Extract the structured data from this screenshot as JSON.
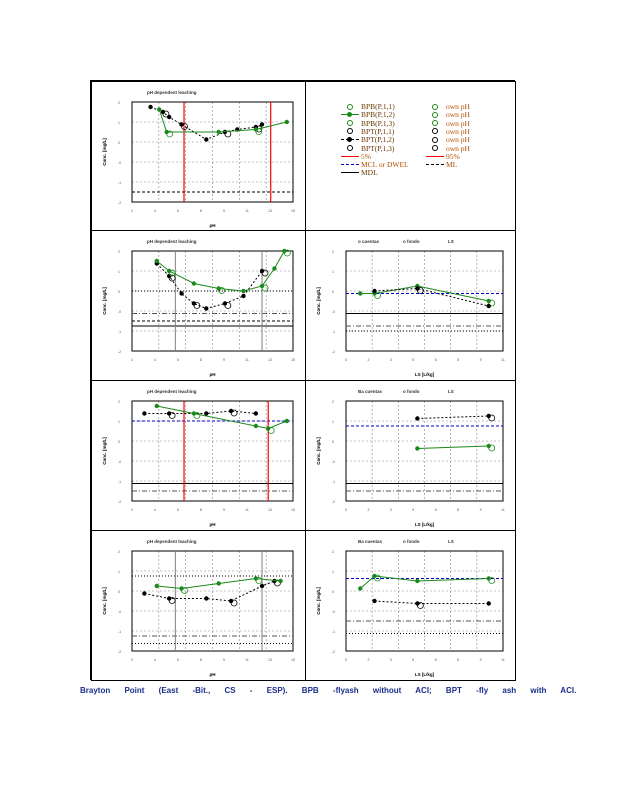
{
  "caption": "Brayton Point (East -Bit., CS - ESP). BPB -flyash without ACI; BPT -fly ash with ACI.",
  "colors": {
    "bpb": "#1a8a1a",
    "bpt": "#000000",
    "red": "#ff0000",
    "blue": "#0000cc",
    "grey": "#808080"
  },
  "legend": {
    "left": [
      {
        "label": "BPB(P,1,1)",
        "sym": "open-green"
      },
      {
        "label": "BPB(P,1,2)",
        "sym": "line-green"
      },
      {
        "label": "BPB(P,1,3)",
        "sym": "open-green"
      },
      {
        "label": "BPT(P,1,1)",
        "sym": "open-black"
      },
      {
        "label": "BPT(P,1,2)",
        "sym": "line-black"
      },
      {
        "label": "BPT(P,1,3)",
        "sym": "open-black"
      },
      {
        "label": "5%",
        "sym": "red"
      },
      {
        "label": "MCL or DWEL",
        "sym": "blue"
      },
      {
        "label": "MDL",
        "sym": "solid"
      }
    ],
    "right": [
      {
        "label": "own pH",
        "sym": "open-green"
      },
      {
        "label": "own pH",
        "sym": "open-green"
      },
      {
        "label": "own pH",
        "sym": "open-green"
      },
      {
        "label": "own pH",
        "sym": "open-black"
      },
      {
        "label": "own pH",
        "sym": "open-black"
      },
      {
        "label": "own pH",
        "sym": "open-black"
      },
      {
        "label": "95%",
        "sym": "red"
      },
      {
        "label": "ML",
        "sym": "dashdot"
      }
    ]
  },
  "chart_data": [
    {
      "type": "scatter",
      "kind": "ph",
      "title": "pH dependent leaching",
      "xlabel": "pH",
      "ylabel": "Conc. [mg/L]",
      "xlim": [
        2,
        15
      ],
      "ylim": [
        -2,
        2
      ],
      "vlines": [
        {
          "x": 6.2,
          "style": "red"
        },
        {
          "x": 13.2,
          "style": "red"
        }
      ],
      "hlines": [
        {
          "y": -1.6,
          "style": "dash"
        }
      ],
      "series": [
        {
          "name": "BPT",
          "style": "bpt",
          "values": [
            [
              3.5,
              1.8
            ],
            [
              4.5,
              1.6
            ],
            [
              5,
              1.4
            ],
            [
              6,
              1.1
            ],
            [
              8,
              0.5
            ],
            [
              9.5,
              0.8
            ],
            [
              10.5,
              0.9
            ],
            [
              12,
              1.0
            ],
            [
              12.5,
              1.1
            ]
          ]
        },
        {
          "name": "BPB",
          "style": "bpb",
          "values": [
            [
              4.2,
              1.7
            ],
            [
              4.8,
              0.8
            ],
            [
              9,
              0.8
            ],
            [
              12,
              0.9
            ],
            [
              14.5,
              1.2
            ]
          ]
        }
      ]
    },
    {
      "type": "scatter",
      "kind": "ph",
      "title": "pH dependent leaching",
      "xlabel": "pH",
      "ylabel": "Conc. [mg/L]",
      "xlim": [
        2,
        15
      ],
      "ylim": [
        -2,
        2
      ],
      "vlines": [
        {
          "x": 5.5,
          "style": "grey"
        },
        {
          "x": 12.5,
          "style": "grey"
        }
      ],
      "hlines": [
        {
          "y": 0.4,
          "style": "dot"
        },
        {
          "y": -0.5,
          "style": "dashdot"
        },
        {
          "y": -0.8,
          "style": "dash"
        },
        {
          "y": -1.0,
          "style": "solid"
        }
      ],
      "series": [
        {
          "name": "BPT",
          "style": "bpt",
          "values": [
            [
              4,
              1.5
            ],
            [
              5,
              1.0
            ],
            [
              6,
              0.3
            ],
            [
              7,
              -0.1
            ],
            [
              8,
              -0.3
            ],
            [
              9.5,
              -0.1
            ],
            [
              11,
              0.2
            ],
            [
              12.5,
              1.2
            ]
          ]
        },
        {
          "name": "BPB",
          "style": "bpb",
          "values": [
            [
              4,
              1.6
            ],
            [
              5,
              1.2
            ],
            [
              7,
              0.7
            ],
            [
              9,
              0.5
            ],
            [
              11,
              0.4
            ],
            [
              12.5,
              0.6
            ],
            [
              13.5,
              1.3
            ],
            [
              14.3,
              2.0
            ]
          ]
        }
      ]
    },
    {
      "type": "scatter",
      "kind": "ls",
      "title": "",
      "xlabel": "LS [L/kg]",
      "ylabel": "Conc. [mg/L]",
      "xlim": [
        0,
        11
      ],
      "ylim": [
        -2,
        2
      ],
      "header": [
        "o cuentas",
        "o fondo",
        "LS"
      ],
      "vlines": [],
      "hlines": [
        {
          "y": 0.3,
          "style": "blue"
        },
        {
          "y": -0.5,
          "style": "solid"
        },
        {
          "y": -1.0,
          "style": "dashdot"
        },
        {
          "y": -1.2,
          "style": "dot"
        }
      ],
      "series": [
        {
          "name": "BPB",
          "style": "bpb",
          "values": [
            [
              1,
              0.3
            ],
            [
              2,
              0.3
            ],
            [
              5,
              0.6
            ],
            [
              10,
              0.0
            ]
          ]
        },
        {
          "name": "BPT",
          "style": "bpt",
          "values": [
            [
              2,
              0.4
            ],
            [
              5,
              0.5
            ],
            [
              10,
              -0.2
            ]
          ]
        }
      ]
    },
    {
      "type": "scatter",
      "kind": "ph",
      "title": "pH dependent leaching",
      "xlabel": "pH",
      "ylabel": "Conc. [mg/L]",
      "xlim": [
        2,
        15
      ],
      "ylim": [
        -2,
        2
      ],
      "vlines": [
        {
          "x": 6.2,
          "style": "red"
        },
        {
          "x": 13,
          "style": "red"
        }
      ],
      "hlines": [
        {
          "y": 1.2,
          "style": "blue"
        },
        {
          "y": -1.3,
          "style": "solid"
        },
        {
          "y": -1.6,
          "style": "dashdot"
        }
      ],
      "series": [
        {
          "name": "BPT",
          "style": "bpt",
          "values": [
            [
              3,
              1.5
            ],
            [
              5,
              1.5
            ],
            [
              8,
              1.5
            ],
            [
              10,
              1.6
            ],
            [
              12,
              1.5
            ]
          ]
        },
        {
          "name": "BPB",
          "style": "bpb",
          "values": [
            [
              4,
              1.8
            ],
            [
              7,
              1.5
            ],
            [
              12,
              1.0
            ],
            [
              13,
              0.9
            ],
            [
              14.5,
              1.2
            ]
          ]
        }
      ]
    },
    {
      "type": "scatter",
      "kind": "ls",
      "title": "",
      "xlabel": "LS [L/kg]",
      "ylabel": "Conc. [mg/L]",
      "xlim": [
        0,
        11
      ],
      "ylim": [
        -2,
        2
      ],
      "header": [
        "Ba cuentas",
        "o fondo",
        "LS"
      ],
      "vlines": [],
      "hlines": [
        {
          "y": 1.0,
          "style": "blue"
        },
        {
          "y": -1.3,
          "style": "solid"
        },
        {
          "y": -1.6,
          "style": "dashdot"
        }
      ],
      "series": [
        {
          "name": "BPT",
          "style": "bpt",
          "values": [
            [
              5,
              1.3
            ],
            [
              10,
              1.4
            ]
          ]
        },
        {
          "name": "BPB",
          "style": "bpb",
          "values": [
            [
              5,
              0.1
            ],
            [
              10,
              0.2
            ]
          ]
        }
      ]
    },
    {
      "type": "scatter",
      "kind": "ph",
      "title": "pH dependent leaching",
      "xlabel": "pH",
      "ylabel": "Conc. [mg/L]",
      "xlim": [
        2,
        15
      ],
      "ylim": [
        -2,
        2
      ],
      "vlines": [
        {
          "x": 5.5,
          "style": "grey"
        },
        {
          "x": 12.5,
          "style": "grey"
        }
      ],
      "hlines": [
        {
          "y": 1.0,
          "style": "dot"
        },
        {
          "y": -1.4,
          "style": "dashdot"
        },
        {
          "y": -1.7,
          "style": "dot"
        }
      ],
      "series": [
        {
          "name": "BPT",
          "style": "bpt",
          "values": [
            [
              3,
              0.3
            ],
            [
              5,
              0.1
            ],
            [
              8,
              0.1
            ],
            [
              10,
              0.0
            ],
            [
              12.5,
              0.6
            ],
            [
              13.5,
              0.8
            ]
          ]
        },
        {
          "name": "BPB",
          "style": "bpb",
          "values": [
            [
              4,
              0.6
            ],
            [
              6,
              0.5
            ],
            [
              9,
              0.7
            ],
            [
              12,
              0.9
            ],
            [
              14,
              0.8
            ]
          ]
        }
      ]
    },
    {
      "type": "scatter",
      "kind": "ls",
      "title": "",
      "xlabel": "LS [L/kg]",
      "ylabel": "Conc. [mg/L]",
      "xlim": [
        0,
        11
      ],
      "ylim": [
        -2,
        2
      ],
      "header": [
        "Ba cuentas",
        "o fondo",
        "LS"
      ],
      "vlines": [],
      "hlines": [
        {
          "y": 0.9,
          "style": "blue"
        },
        {
          "y": -0.8,
          "style": "dashdot"
        },
        {
          "y": -1.3,
          "style": "dot"
        }
      ],
      "series": [
        {
          "name": "BPB",
          "style": "bpb",
          "values": [
            [
              1,
              0.5
            ],
            [
              2,
              1.0
            ],
            [
              5,
              0.8
            ],
            [
              10,
              0.9
            ]
          ]
        },
        {
          "name": "BPT",
          "style": "bpt",
          "values": [
            [
              2,
              0.0
            ],
            [
              5,
              -0.1
            ],
            [
              10,
              -0.1
            ]
          ]
        }
      ]
    }
  ]
}
